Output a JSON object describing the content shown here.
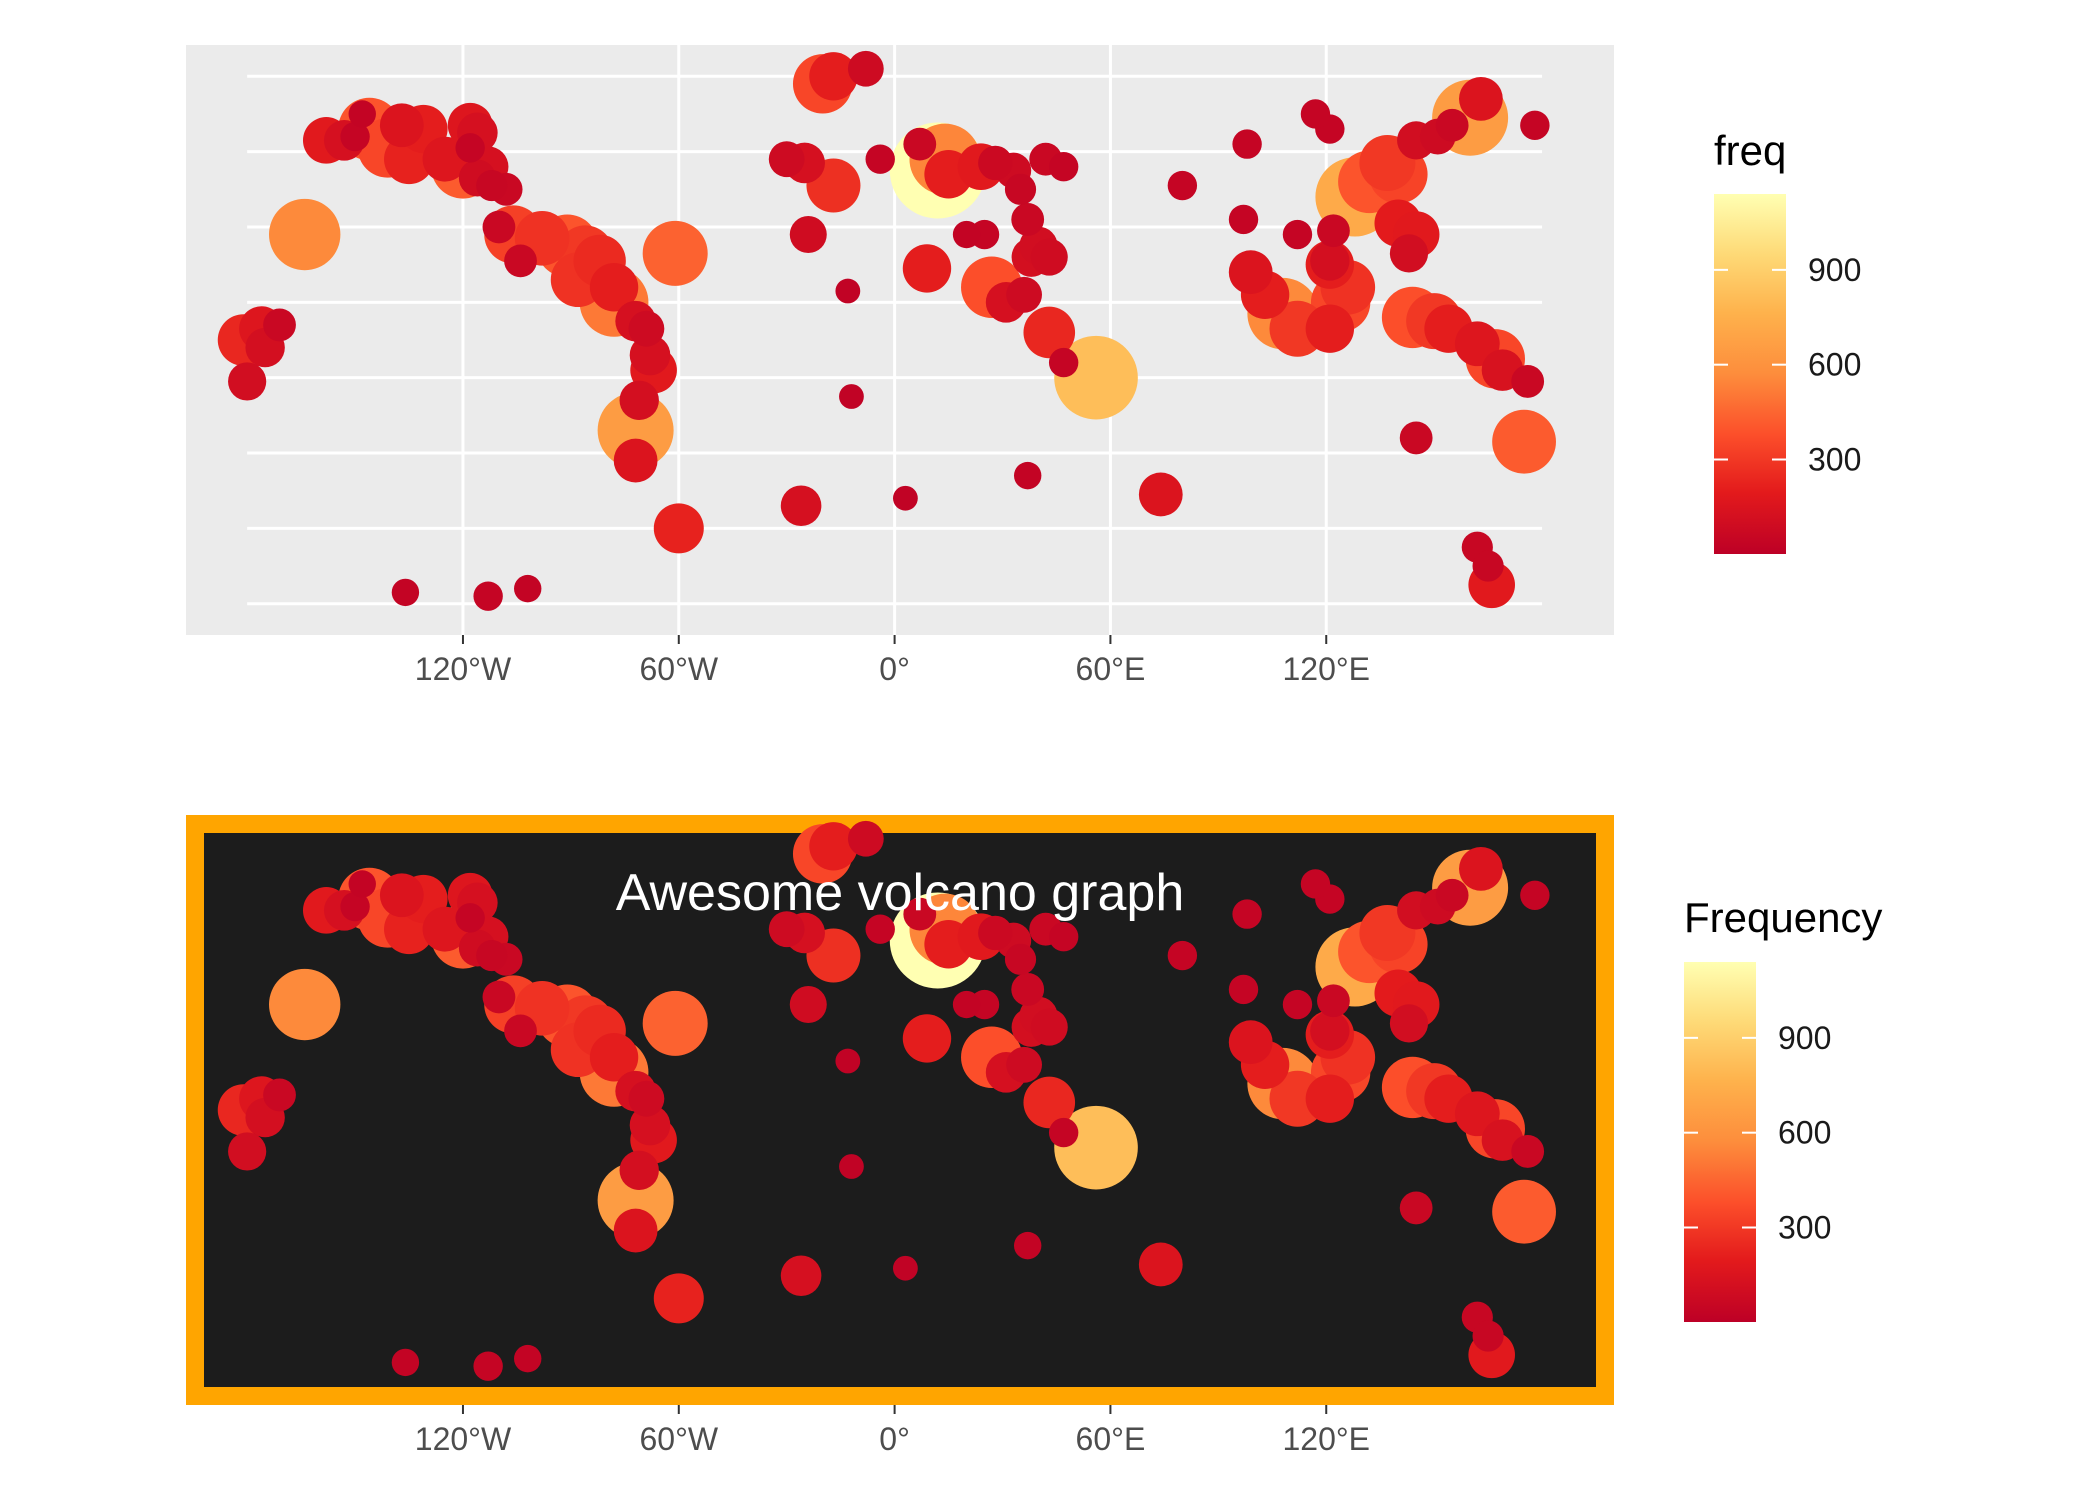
{
  "chart_data": [
    {
      "type": "scatter",
      "map": "world-volcanoes",
      "title": "",
      "xlabel": "",
      "ylabel": "",
      "x_ticks": [
        "120°W",
        "60°W",
        "0°",
        "60°E",
        "120°E"
      ],
      "x_tick_values": [
        -120,
        -60,
        0,
        60,
        120
      ],
      "xlim": [
        -180,
        180
      ],
      "ylim": [
        -85,
        80
      ],
      "grid": true,
      "panel_color": "#ebebeb",
      "legend": {
        "title": "freq",
        "position": "right",
        "labels": [
          "300",
          "600",
          "900"
        ],
        "breaks": [
          300,
          600,
          900
        ],
        "range": [
          1,
          1140
        ]
      },
      "colorscale": [
        "#bd0026",
        "#e31a1c",
        "#fc4e2a",
        "#fd8d3c",
        "#feb24c",
        "#fed976",
        "#ffffb2"
      ]
    },
    {
      "type": "scatter",
      "map": "world-volcanoes",
      "title": "Awesome volcano graph",
      "xlabel": "",
      "ylabel": "",
      "x_ticks": [
        "120°W",
        "60°W",
        "0°",
        "60°E",
        "120°E"
      ],
      "x_tick_values": [
        -120,
        -60,
        0,
        60,
        120
      ],
      "xlim": [
        -180,
        180
      ],
      "ylim": [
        -85,
        80
      ],
      "grid": false,
      "panel_color": "#1c1c1c",
      "border_color": "#ffa500",
      "legend": {
        "title": "Frequency",
        "position": "right",
        "labels": [
          "300",
          "600",
          "900"
        ],
        "breaks": [
          300,
          600,
          900
        ],
        "range": [
          1,
          1140
        ]
      },
      "colorscale": [
        "#bd0026",
        "#e31a1c",
        "#fc4e2a",
        "#fd8d3c",
        "#feb24c",
        "#fed976",
        "#ffffb2"
      ]
    }
  ],
  "volcanoes": [
    {
      "lon": -158,
      "lat": 63,
      "freq": 180
    },
    {
      "lon": -153,
      "lat": 63,
      "freq": 120
    },
    {
      "lon": -150,
      "lat": 64,
      "freq": 40
    },
    {
      "lon": -146,
      "lat": 66,
      "freq": 400
    },
    {
      "lon": -141,
      "lat": 61,
      "freq": 350
    },
    {
      "lon": -148,
      "lat": 70,
      "freq": 30
    },
    {
      "lon": -137,
      "lat": 67,
      "freq": 150
    },
    {
      "lon": -131,
      "lat": 66,
      "freq": 200
    },
    {
      "lon": -118,
      "lat": 67,
      "freq": 160
    },
    {
      "lon": -116,
      "lat": 65,
      "freq": 120
    },
    {
      "lon": -125,
      "lat": 58,
      "freq": 160
    },
    {
      "lon": -120,
      "lat": 56,
      "freq": 420
    },
    {
      "lon": -113,
      "lat": 56,
      "freq": 120
    },
    {
      "lon": -116,
      "lat": 53,
      "freq": 90
    },
    {
      "lon": -108,
      "lat": 50,
      "freq": 60
    },
    {
      "lon": -112,
      "lat": 51,
      "freq": 50
    },
    {
      "lon": -135,
      "lat": 58,
      "freq": 220
    },
    {
      "lon": -118,
      "lat": 61,
      "freq": 40
    },
    {
      "lon": -164,
      "lat": 38,
      "freq": 560
    },
    {
      "lon": -106,
      "lat": 38,
      "freq": 330
    },
    {
      "lon": -110,
      "lat": 40,
      "freq": 60
    },
    {
      "lon": -98,
      "lat": 37,
      "freq": 280
    },
    {
      "lon": -91,
      "lat": 35,
      "freq": 400
    },
    {
      "lon": -86,
      "lat": 33,
      "freq": 300
    },
    {
      "lon": -82,
      "lat": 31,
      "freq": 250
    },
    {
      "lon": -88,
      "lat": 26,
      "freq": 280
    },
    {
      "lon": -78,
      "lat": 24,
      "freq": 200
    },
    {
      "lon": -78,
      "lat": 20,
      "freq": 510
    },
    {
      "lon": -104,
      "lat": 31,
      "freq": 60
    },
    {
      "lon": -61,
      "lat": 33,
      "freq": 440
    },
    {
      "lon": -72,
      "lat": 15,
      "freq": 120
    },
    {
      "lon": -68,
      "lat": 6,
      "freq": 120
    },
    {
      "lon": -67,
      "lat": 2,
      "freq": 180
    },
    {
      "lon": -69,
      "lat": 13,
      "freq": 80
    },
    {
      "lon": -72,
      "lat": -14,
      "freq": 650
    },
    {
      "lon": -72,
      "lat": -22,
      "freq": 150
    },
    {
      "lon": -71,
      "lat": -6,
      "freq": 110
    },
    {
      "lon": -60,
      "lat": -40,
      "freq": 220
    },
    {
      "lon": -181,
      "lat": 10,
      "freq": 240
    },
    {
      "lon": -176,
      "lat": 13,
      "freq": 160
    },
    {
      "lon": -171,
      "lat": 14,
      "freq": 60
    },
    {
      "lon": -175,
      "lat": 8,
      "freq": 110
    },
    {
      "lon": -180,
      "lat": -1,
      "freq": 100
    },
    {
      "lon": -136,
      "lat": -57,
      "freq": 30
    },
    {
      "lon": -113,
      "lat": -58,
      "freq": 40
    },
    {
      "lon": -102,
      "lat": -56,
      "freq": 30
    },
    {
      "lon": -20,
      "lat": 78,
      "freq": 350
    },
    {
      "lon": -17,
      "lat": 80,
      "freq": 200
    },
    {
      "lon": -8,
      "lat": 82,
      "freq": 80
    },
    {
      "lon": -30,
      "lat": 58,
      "freq": 80
    },
    {
      "lon": -25,
      "lat": 57,
      "freq": 120
    },
    {
      "lon": -17,
      "lat": 51,
      "freq": 270
    },
    {
      "lon": -24,
      "lat": 38,
      "freq": 90
    },
    {
      "lon": -13,
      "lat": 23,
      "freq": 20
    },
    {
      "lon": -12,
      "lat": -5,
      "freq": 20
    },
    {
      "lon": -26,
      "lat": -34,
      "freq": 120
    },
    {
      "lon": 12,
      "lat": 55,
      "freq": 1140
    },
    {
      "lon": 14,
      "lat": 58,
      "freq": 550
    },
    {
      "lon": 15,
      "lat": 54,
      "freq": 200
    },
    {
      "lon": 3,
      "lat": -32,
      "freq": 20
    },
    {
      "lon": 7,
      "lat": 62,
      "freq": 60
    },
    {
      "lon": -4,
      "lat": 58,
      "freq": 40
    },
    {
      "lon": 9,
      "lat": 29,
      "freq": 200
    },
    {
      "lon": 24,
      "lat": 56,
      "freq": 180
    },
    {
      "lon": 28,
      "lat": 57,
      "freq": 70
    },
    {
      "lon": 33,
      "lat": 55,
      "freq": 80
    },
    {
      "lon": 42,
      "lat": 58,
      "freq": 60
    },
    {
      "lon": 47,
      "lat": 56,
      "freq": 40
    },
    {
      "lon": 35,
      "lat": 50,
      "freq": 50
    },
    {
      "lon": 37,
      "lat": 42,
      "freq": 60
    },
    {
      "lon": 25,
      "lat": 38,
      "freq": 40
    },
    {
      "lon": 20,
      "lat": 38,
      "freq": 30
    },
    {
      "lon": 38,
      "lat": 32,
      "freq": 110
    },
    {
      "lon": 40,
      "lat": 35,
      "freq": 100
    },
    {
      "lon": 43,
      "lat": 32,
      "freq": 90
    },
    {
      "lon": 27,
      "lat": 24,
      "freq": 380
    },
    {
      "lon": 31,
      "lat": 20,
      "freq": 120
    },
    {
      "lon": 36,
      "lat": 22,
      "freq": 80
    },
    {
      "lon": 43,
      "lat": 12,
      "freq": 240
    },
    {
      "lon": 47,
      "lat": 4,
      "freq": 40
    },
    {
      "lon": 56,
      "lat": 0,
      "freq": 820
    },
    {
      "lon": 37,
      "lat": -26,
      "freq": 30
    },
    {
      "lon": 74,
      "lat": -31,
      "freq": 150
    },
    {
      "lon": 80,
      "lat": 51,
      "freq": 40
    },
    {
      "lon": 98,
      "lat": 62,
      "freq": 40
    },
    {
      "lon": 97,
      "lat": 42,
      "freq": 40
    },
    {
      "lon": 112,
      "lat": 38,
      "freq": 40
    },
    {
      "lon": 99,
      "lat": 28,
      "freq": 150
    },
    {
      "lon": 103,
      "lat": 22,
      "freq": 200
    },
    {
      "lon": 108,
      "lat": 17,
      "freq": 560
    },
    {
      "lon": 112,
      "lat": 13,
      "freq": 300
    },
    {
      "lon": 121,
      "lat": 13,
      "freq": 200
    },
    {
      "lon": 124,
      "lat": 20,
      "freq": 350
    },
    {
      "lon": 126,
      "lat": 24,
      "freq": 280
    },
    {
      "lon": 121,
      "lat": 30,
      "freq": 200
    },
    {
      "lon": 121,
      "lat": 31,
      "freq": 110
    },
    {
      "lon": 128,
      "lat": 48,
      "freq": 720
    },
    {
      "lon": 132,
      "lat": 52,
      "freq": 400
    },
    {
      "lon": 137,
      "lat": 57,
      "freq": 300
    },
    {
      "lon": 140,
      "lat": 54,
      "freq": 340
    },
    {
      "lon": 145,
      "lat": 63,
      "freq": 100
    },
    {
      "lon": 151,
      "lat": 64,
      "freq": 80
    },
    {
      "lon": 160,
      "lat": 69,
      "freq": 650
    },
    {
      "lon": 163,
      "lat": 74,
      "freq": 150
    },
    {
      "lon": 155,
      "lat": 67,
      "freq": 60
    },
    {
      "lon": 121,
      "lat": 66,
      "freq": 40
    },
    {
      "lon": 117,
      "lat": 70,
      "freq": 40
    },
    {
      "lon": 178,
      "lat": 67,
      "freq": 40
    },
    {
      "lon": 140,
      "lat": 41,
      "freq": 190
    },
    {
      "lon": 145,
      "lat": 38,
      "freq": 180
    },
    {
      "lon": 143,
      "lat": 33,
      "freq": 100
    },
    {
      "lon": 122,
      "lat": 39,
      "freq": 60
    },
    {
      "lon": 144,
      "lat": 16,
      "freq": 380
    },
    {
      "lon": 150,
      "lat": 15,
      "freq": 300
    },
    {
      "lon": 154,
      "lat": 13,
      "freq": 200
    },
    {
      "lon": 162,
      "lat": 9,
      "freq": 160
    },
    {
      "lon": 167,
      "lat": 5,
      "freq": 350
    },
    {
      "lon": 169,
      "lat": 2,
      "freq": 130
    },
    {
      "lon": 176,
      "lat": -1,
      "freq": 60
    },
    {
      "lon": 175,
      "lat": -17,
      "freq": 420
    },
    {
      "lon": 145,
      "lat": -16,
      "freq": 60
    },
    {
      "lon": 162,
      "lat": -45,
      "freq": 50
    },
    {
      "lon": 165,
      "lat": -50,
      "freq": 50
    },
    {
      "lon": 166,
      "lat": -55,
      "freq": 180
    }
  ]
}
